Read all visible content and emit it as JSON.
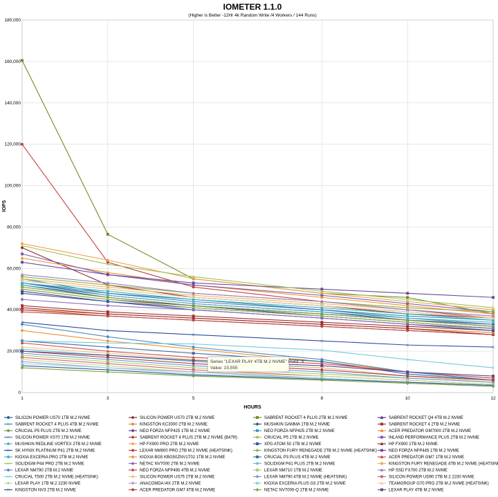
{
  "chart_data": {
    "type": "line",
    "title": "IOMETER 1.1.0",
    "subtitle": "(Higher is Better -12Hr 4k Random Write /4 Workers / 144 Runs)",
    "xlabel": "HOURS",
    "ylabel": "IOPS",
    "x": [
      1,
      3,
      5,
      8,
      10,
      12
    ],
    "ylim": [
      0,
      180000
    ],
    "yticks": [
      "0",
      "20,000",
      "40,000",
      "60,000",
      "80,000",
      "100,000",
      "120,000",
      "140,000",
      "160,000",
      "180,000"
    ],
    "grid": true,
    "legend_position": "bottom",
    "series": [
      {
        "name": "SILICON POWER US70 1TB M.2 NVME",
        "color": "#1f5c99",
        "values": [
          53000,
          47000,
          43000,
          39000,
          35000,
          33000
        ]
      },
      {
        "name": "SILICON POWER US70 2TB M.2 NVME",
        "color": "#8b2a2a",
        "values": [
          70000,
          52000,
          46000,
          42000,
          38000,
          36000
        ]
      },
      {
        "name": "SABRENT ROCKET 4 PLUS 2TB M.2 NVME",
        "color": "#6b8e23",
        "values": [
          160500,
          76500,
          55000,
          48000,
          46000,
          38000
        ]
      },
      {
        "name": "SABRENT ROCKET Q4 4TB M.2 NVME",
        "color": "#4b3a7a",
        "values": [
          50000,
          45000,
          42000,
          38000,
          35000,
          32000
        ]
      },
      {
        "name": "SABRENT ROCKET 4 PLUS 4TB M.2 NVME",
        "color": "#2b8fa6",
        "values": [
          55000,
          48000,
          45000,
          40000,
          37000,
          35000
        ]
      },
      {
        "name": "KINGSTON KC3000 2TB M.2 NVME",
        "color": "#e08a2a",
        "values": [
          40000,
          38000,
          36000,
          33000,
          31000,
          29000
        ]
      },
      {
        "name": "MUSHKIN GAMMA 1TB M.2 NVME",
        "color": "#2e4a7a",
        "values": [
          52000,
          46000,
          42000,
          37000,
          34000,
          31000
        ]
      },
      {
        "name": "SABRENT ROCKET 4 2TB M.2 NVME",
        "color": "#a03030",
        "values": [
          42000,
          39000,
          37000,
          34000,
          32000,
          30000
        ]
      },
      {
        "name": "CRUCIAL P5 PLUS 2TB M.2 NVME",
        "color": "#7a9a3a",
        "values": [
          51000,
          46000,
          42000,
          38000,
          35000,
          32000
        ]
      },
      {
        "name": "NEO FORZA NFP425 1TB M.2 NVME",
        "color": "#5a3a8a",
        "values": [
          49000,
          44000,
          41000,
          37000,
          34000,
          31000
        ]
      },
      {
        "name": "NEO FORZA NFP425 2TB M.2 NVME",
        "color": "#3aa0b8",
        "values": [
          54000,
          50000,
          46000,
          42000,
          39000,
          36000
        ]
      },
      {
        "name": "ACER PREDATOR GM7000 2TB M.2 NVME",
        "color": "#f09030",
        "values": [
          65000,
          58000,
          52000,
          46000,
          42000,
          38000
        ]
      },
      {
        "name": "SILICON POWER XS70 1TB M.2 NVME",
        "color": "#4a7ab8",
        "values": [
          53000,
          48000,
          44000,
          40000,
          36000,
          33000
        ]
      },
      {
        "name": "SABRENT ROCKET 4 PLUS 2TB M.2 NVME (B47R)",
        "color": "#c04040",
        "values": [
          120000,
          63000,
          51000,
          44000,
          40000,
          36000
        ]
      },
      {
        "name": "CRUCIAL P5 1TB M.2 NVME",
        "color": "#9ab850",
        "values": [
          50000,
          45000,
          41000,
          37000,
          34000,
          31000
        ]
      },
      {
        "name": "INLAND PERFORMANCE PLUS 2TB M.2 NVME",
        "color": "#7a5aa8",
        "values": [
          67000,
          57000,
          52000,
          47000,
          43000,
          39000
        ]
      },
      {
        "name": "MUSHKIN REDLINE VORTEX 2TB M.2 NVME",
        "color": "#50b0c8",
        "values": [
          52000,
          47000,
          43000,
          39000,
          36000,
          34000
        ]
      },
      {
        "name": "HP FX900 PRO 2TB M.2 NVME",
        "color": "#f0a050",
        "values": [
          72000,
          64000,
          55000,
          48000,
          44000,
          40000
        ]
      },
      {
        "name": "XPG ATOM 50 1TB M.2 NVME",
        "color": "#2a5a9a",
        "values": [
          48000,
          44000,
          40000,
          36000,
          33000,
          30000
        ]
      },
      {
        "name": "HP FX900 1TB M.2 NVME",
        "color": "#9a2a2a",
        "values": [
          41000,
          38000,
          36000,
          33000,
          31000,
          28000
        ]
      },
      {
        "name": "SK HYNIX PLATINUM P41 2TB M.2 NVME",
        "color": "#2a4a9a",
        "values": [
          34000,
          30000,
          28000,
          25000,
          23000,
          22000
        ]
      },
      {
        "name": "LEXAR NM800 PRO 2TB M.2 NVME (HEATSINK)",
        "color": "#c83a3a",
        "values": [
          40000,
          37000,
          35000,
          32000,
          30000,
          28000
        ]
      },
      {
        "name": "KINGSTON FURY RENEGADE 2TB M.2 NVME (HEATSINK)",
        "color": "#8ab040",
        "values": [
          56000,
          52000,
          48000,
          44000,
          41000,
          39000
        ]
      },
      {
        "name": "NEO FORZA NFP445 1TB M.2 NVME",
        "color": "#6a4a9a",
        "values": [
          63000,
          57000,
          53000,
          50000,
          48000,
          46000
        ]
      },
      {
        "name": "KIOXIA EXCERIA PRO 2TB M.2 NVME",
        "color": "#3ab0c0",
        "values": [
          53000,
          49000,
          45000,
          41000,
          38000,
          35000
        ]
      },
      {
        "name": "KIOXIA BG5 KBG50ZNV1T02 1TB M.2 NVME",
        "color": "#f0902a",
        "values": [
          30000,
          25000,
          21000,
          15000,
          10000,
          7000
        ]
      },
      {
        "name": "CRUCIAL P3 PLUS 4TB M.2 NVME",
        "color": "#3a6aa8",
        "values": [
          25000,
          22000,
          19000,
          15000,
          9000,
          6000
        ]
      },
      {
        "name": "ACER PREDATOR GM7 1TB M.2 NVME",
        "color": "#d04848",
        "values": [
          24000,
          20000,
          17000,
          14000,
          10000,
          7000
        ]
      },
      {
        "name": "SOLIDIGM P44 PRO 2TB M.2 NVME",
        "color": "#a0c050",
        "values": [
          71000,
          62000,
          56000,
          49000,
          45000,
          41000
        ]
      },
      {
        "name": "NETAC NV7000 2TB M.2 NVME",
        "color": "#8a6ab8",
        "values": [
          45000,
          42000,
          40000,
          36000,
          33000,
          31000
        ]
      },
      {
        "name": "SOLIDIGM P41 PLUS 2TB M.2 NVME",
        "color": "#5ac0d0",
        "values": [
          21000,
          18000,
          15000,
          12000,
          8000,
          6000
        ]
      },
      {
        "name": "KINGSTON FURY RENEGADE 4TB M.2 NVME (HEATSINK)",
        "color": "#f0b060",
        "values": [
          55000,
          51000,
          47000,
          43000,
          40000,
          37000
        ]
      },
      {
        "name": "LEXAR NM790 2TB M.2 NVME",
        "color": "#4a8ac8",
        "values": [
          33000,
          27000,
          22000,
          16000,
          10000,
          6000
        ]
      },
      {
        "name": "NEO FORZA NFP495 4TB M.2 NVME",
        "color": "#b84a4a",
        "values": [
          39000,
          37000,
          35000,
          32000,
          30000,
          28000
        ]
      },
      {
        "name": "LEXAR NM710 1TB M.2 NVME",
        "color": "#b0c870",
        "values": [
          18000,
          15000,
          12000,
          9000,
          7000,
          5000
        ]
      },
      {
        "name": "HP SSD FX700 2TB M.2 NVME",
        "color": "#9a80c0",
        "values": [
          57000,
          53000,
          48000,
          44000,
          40000,
          37000
        ]
      },
      {
        "name": "CRUCIAL T500 2TB M.2 NVME (HEATSINK)",
        "color": "#70c8d8",
        "values": [
          25000,
          24000,
          23500,
          20500,
          16000,
          12000
        ]
      },
      {
        "name": "SILICON POWER US75 2TB M.2 NVME",
        "color": "#f0c080",
        "values": [
          22000,
          19000,
          16000,
          12000,
          8000,
          5000
        ]
      },
      {
        "name": "LEXAR NM790 4TB M.2 NVME (HEATSINK)",
        "color": "#6a9ad0",
        "values": [
          19000,
          16000,
          13000,
          10000,
          7000,
          5000
        ]
      },
      {
        "name": "SILICON POWER UD90 2TB M.2 2230 NVME",
        "color": "#d06a6a",
        "values": [
          17000,
          14000,
          11000,
          8000,
          6000,
          4000
        ]
      },
      {
        "name": "LEXAR PLAY 1TB M.2 2230 NVME",
        "color": "#c0d890",
        "values": [
          16000,
          13000,
          10000,
          8000,
          6000,
          4000
        ]
      },
      {
        "name": "ANACOMDA I4X 2TB M.2 NVME",
        "color": "#b098d0",
        "values": [
          15000,
          12000,
          10000,
          7000,
          5000,
          3500
        ]
      },
      {
        "name": "KIOXIA EXCERIA PLUS G3 2TB M.2 NVME",
        "color": "#90d8e0",
        "values": [
          14000,
          12000,
          9000,
          7000,
          5000,
          3500
        ]
      },
      {
        "name": "TEAMGROUP G70 PRO 2TB M.2 NVME (HEATSINK)",
        "color": "#f0d0a0",
        "values": [
          54000,
          50000,
          46000,
          42000,
          39000,
          36000
        ]
      },
      {
        "name": "KINGSTON NV3 2TB M.2 NVME",
        "color": "#2a5a8a",
        "values": [
          13000,
          11000,
          8500,
          6500,
          5000,
          3500
        ]
      },
      {
        "name": "ACER PREDATOR GM7 4TB M.2 NVME",
        "color": "#b04040",
        "values": [
          20000,
          17000,
          14000,
          11000,
          8000,
          6000
        ]
      },
      {
        "name": "NETAC NV7000-Q 1TB M.2 NVME",
        "color": "#80a040",
        "values": [
          12000,
          10000,
          8000,
          6000,
          4500,
          3000
        ]
      },
      {
        "name": "LEXAR PLAY 4TB M.2 NVME",
        "color": "#5a4a8a",
        "values": [
          20000,
          18000,
          15555,
          13000,
          10000,
          8000
        ]
      }
    ],
    "tooltip": {
      "line1": "Series \"LEXAR PLAY 4TB M.2 NVME\" Point \"5\"",
      "line2": "Value: 15,555"
    }
  }
}
